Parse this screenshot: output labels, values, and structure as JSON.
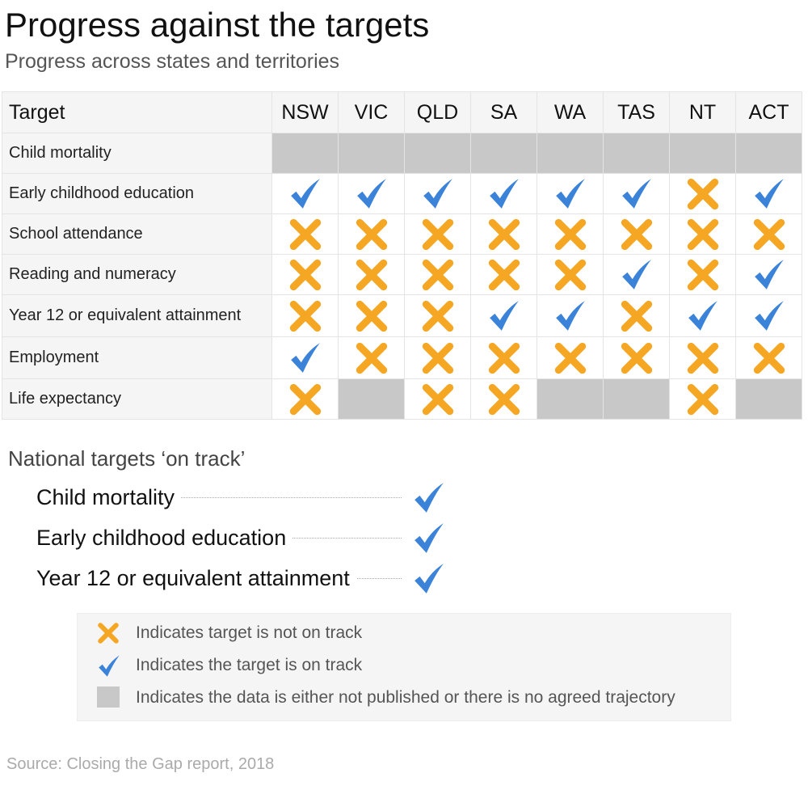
{
  "title": "Progress against the targets",
  "subtitle": "Progress across states and territories",
  "chart_data": {
    "type": "table",
    "columns": [
      "Target",
      "NSW",
      "VIC",
      "QLD",
      "SA",
      "WA",
      "TAS",
      "NT",
      "ACT"
    ],
    "rows": [
      {
        "target": "Child mortality",
        "status": [
          "na",
          "na",
          "na",
          "na",
          "na",
          "na",
          "na",
          "na"
        ]
      },
      {
        "target": "Early childhood education",
        "status": [
          "check",
          "check",
          "check",
          "check",
          "check",
          "check",
          "cross",
          "check"
        ]
      },
      {
        "target": "School attendance",
        "status": [
          "cross",
          "cross",
          "cross",
          "cross",
          "cross",
          "cross",
          "cross",
          "cross"
        ]
      },
      {
        "target": "Reading and numeracy",
        "status": [
          "cross",
          "cross",
          "cross",
          "cross",
          "cross",
          "check",
          "cross",
          "check"
        ]
      },
      {
        "target": "Year 12 or equivalent attainment",
        "status": [
          "cross",
          "cross",
          "cross",
          "check",
          "check",
          "cross",
          "check",
          "check"
        ]
      },
      {
        "target": "Employment",
        "status": [
          "check",
          "cross",
          "cross",
          "cross",
          "cross",
          "cross",
          "cross",
          "cross"
        ]
      },
      {
        "target": "Life expectancy",
        "status": [
          "cross",
          "na",
          "cross",
          "cross",
          "na",
          "na",
          "cross",
          "na"
        ]
      }
    ]
  },
  "national": {
    "heading": "National targets ‘on track’",
    "items": [
      "Child mortality",
      "Early childhood education",
      "Year 12 or equivalent attainment"
    ]
  },
  "legend": {
    "cross": "Indicates target is not on track",
    "check": "Indicates the target is on track",
    "na": "Indicates the data is either not published or there is no agreed trajectory"
  },
  "source": "Source: Closing the Gap report, 2018",
  "colors": {
    "check": "#3b82d9",
    "cross": "#f5a623",
    "na": "#c8c8c8"
  }
}
